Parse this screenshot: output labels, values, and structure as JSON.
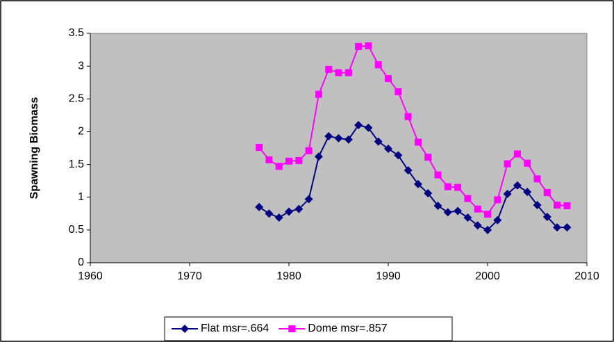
{
  "chart_data": {
    "type": "line",
    "y_label": "Spawning Biomass",
    "x": [
      1977,
      1978,
      1979,
      1980,
      1981,
      1982,
      1983,
      1984,
      1985,
      1986,
      1987,
      1988,
      1989,
      1990,
      1991,
      1992,
      1993,
      1994,
      1995,
      1996,
      1997,
      1998,
      1999,
      2000,
      2001,
      2002,
      2003,
      2004,
      2005,
      2006,
      2007,
      2008
    ],
    "series": [
      {
        "name": "Flat msr=.664",
        "color": "#000080",
        "marker": "diamond",
        "values": [
          0.85,
          0.75,
          0.69,
          0.78,
          0.82,
          0.97,
          1.62,
          1.93,
          1.9,
          1.88,
          2.1,
          2.06,
          1.85,
          1.74,
          1.64,
          1.41,
          1.2,
          1.06,
          0.87,
          0.77,
          0.79,
          0.69,
          0.57,
          0.5,
          0.65,
          1.05,
          1.18,
          1.08,
          0.88,
          0.7,
          0.54,
          0.54
        ]
      },
      {
        "name": "Dome msr=.857",
        "color": "#ff00ff",
        "marker": "square",
        "values": [
          1.76,
          1.57,
          1.47,
          1.55,
          1.56,
          1.71,
          2.57,
          2.95,
          2.9,
          2.9,
          3.3,
          3.31,
          3.02,
          2.81,
          2.61,
          2.23,
          1.84,
          1.61,
          1.34,
          1.16,
          1.15,
          0.98,
          0.82,
          0.74,
          0.96,
          1.51,
          1.66,
          1.52,
          1.28,
          1.07,
          0.88,
          0.87
        ]
      }
    ],
    "xlim": [
      1960,
      2010
    ],
    "xticks": [
      1960,
      1970,
      1980,
      1990,
      2000,
      2010
    ],
    "ylim": [
      0,
      3.5
    ],
    "yticks": [
      0,
      0.5,
      1,
      1.5,
      2,
      2.5,
      3,
      3.5
    ],
    "plot_background": "#c0c0c0",
    "grid": false,
    "legend": "bottom"
  }
}
